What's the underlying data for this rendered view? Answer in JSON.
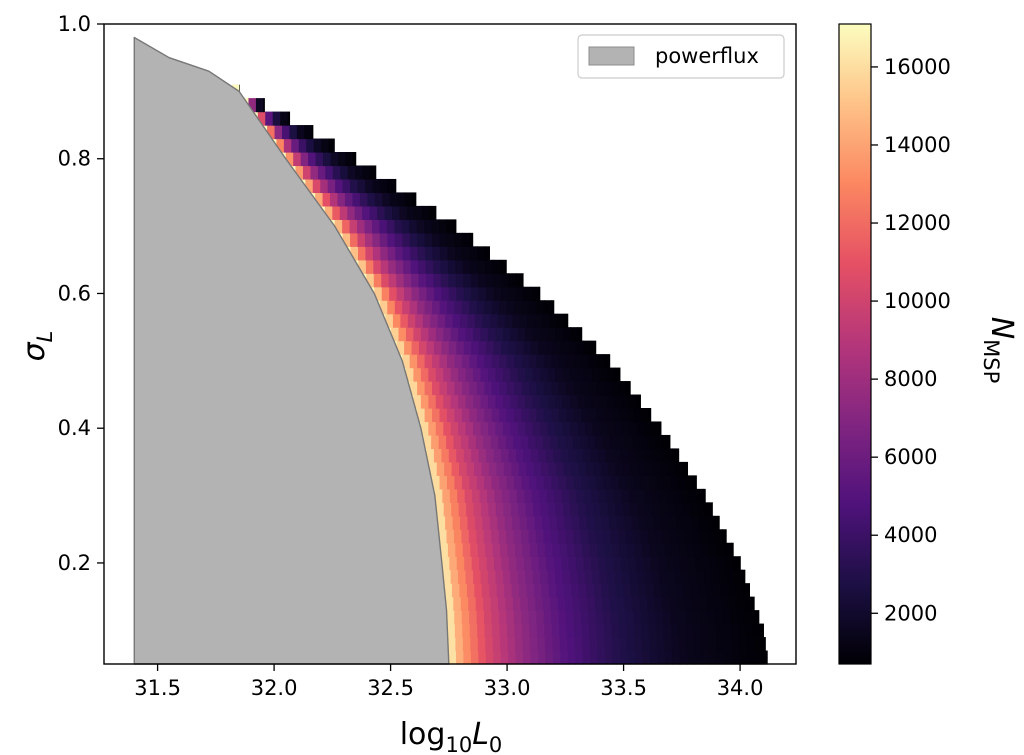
{
  "chart_data": {
    "type": "heatmap",
    "title": "",
    "xlabel_base": "log",
    "xlabel_sub": "10",
    "xlabel_var": "L",
    "xlabel_var_sub": "0",
    "ylabel_var": "σ",
    "ylabel_sub": "L",
    "xlim": [
      31.27,
      34.24
    ],
    "ylim": [
      0.05,
      1.0
    ],
    "xticks": [
      31.5,
      32.0,
      32.5,
      33.0,
      33.5,
      34.0
    ],
    "xtick_labels": [
      "31.5",
      "32.0",
      "32.5",
      "33.0",
      "33.5",
      "34.0"
    ],
    "yticks": [
      0.2,
      0.4,
      0.6,
      0.8,
      1.0
    ],
    "ytick_labels": [
      "0.2",
      "0.4",
      "0.6",
      "0.8",
      "1.0"
    ],
    "grid": false,
    "colormap": "magma",
    "colorbar": {
      "label_var": "N",
      "label_sub": "MSP",
      "range": [
        700,
        17100
      ],
      "ticks": [
        2000,
        4000,
        6000,
        8000,
        10000,
        12000,
        14000,
        16000
      ],
      "tick_labels": [
        "2000",
        "4000",
        "6000",
        "8000",
        "10000",
        "12000",
        "14000",
        "16000"
      ]
    },
    "legend": {
      "placement": "top-right",
      "entries": [
        {
          "name": "powerflux",
          "color": "#b3b3b3"
        }
      ]
    },
    "regions": [
      {
        "name": "powerflux",
        "type": "excluded-area",
        "color": "#b3b3b3",
        "left_x": 31.4,
        "boundary": [
          {
            "sigma": 0.98,
            "log10L0": 31.4
          },
          {
            "sigma": 0.95,
            "log10L0": 31.55
          },
          {
            "sigma": 0.93,
            "log10L0": 31.72
          },
          {
            "sigma": 0.9,
            "log10L0": 31.85
          },
          {
            "sigma": 0.8,
            "log10L0": 32.05
          },
          {
            "sigma": 0.7,
            "log10L0": 32.26
          },
          {
            "sigma": 0.6,
            "log10L0": 32.43
          },
          {
            "sigma": 0.5,
            "log10L0": 32.55
          },
          {
            "sigma": 0.4,
            "log10L0": 32.63
          },
          {
            "sigma": 0.3,
            "log10L0": 32.69
          },
          {
            "sigma": 0.2,
            "log10L0": 32.72
          },
          {
            "sigma": 0.13,
            "log10L0": 32.74
          },
          {
            "sigma": 0.05,
            "log10L0": 32.75
          }
        ]
      }
    ],
    "heatmap": {
      "x_step": 0.032,
      "y_step": 0.02,
      "outer_boundary": [
        {
          "sigma": 0.05,
          "log10L0": 34.12
        },
        {
          "sigma": 0.1,
          "log10L0": 34.1
        },
        {
          "sigma": 0.2,
          "log10L0": 34.0
        },
        {
          "sigma": 0.3,
          "log10L0": 33.85
        },
        {
          "sigma": 0.4,
          "log10L0": 33.66
        },
        {
          "sigma": 0.5,
          "log10L0": 33.44
        },
        {
          "sigma": 0.6,
          "log10L0": 33.14
        },
        {
          "sigma": 0.7,
          "log10L0": 32.78
        },
        {
          "sigma": 0.8,
          "log10L0": 32.35
        },
        {
          "sigma": 0.85,
          "log10L0": 32.12
        },
        {
          "sigma": 0.9,
          "log10L0": 31.85
        }
      ],
      "color_levels": [
        {
          "offset": 0.0,
          "N": 17000
        },
        {
          "offset": 0.06,
          "N": 14000
        },
        {
          "offset": 0.18,
          "N": 10500
        },
        {
          "offset": 0.35,
          "N": 7500
        },
        {
          "offset": 0.55,
          "N": 5000
        },
        {
          "offset": 0.8,
          "N": 3000
        },
        {
          "offset": 1.1,
          "N": 1500
        },
        {
          "offset": 1.5,
          "N": 700
        }
      ]
    }
  }
}
